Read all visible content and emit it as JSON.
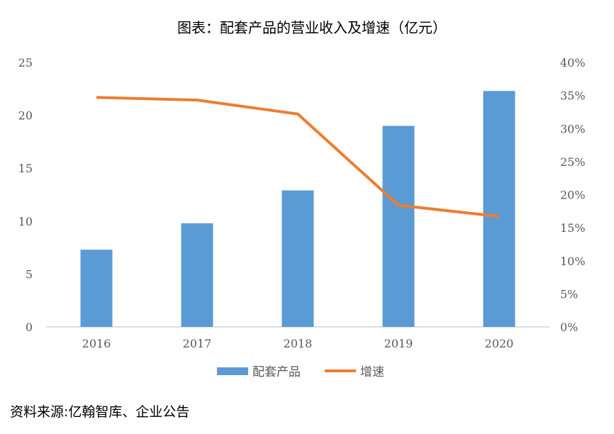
{
  "chart_data": {
    "type": "bar",
    "title": "图表：配套产品的营业收入及增速（亿元）",
    "categories": [
      "2016",
      "2017",
      "2018",
      "2019",
      "2020"
    ],
    "series": [
      {
        "name": "配套产品",
        "type": "bar",
        "axis": "left",
        "color": "#5B9BD5",
        "values": [
          7.3,
          9.8,
          12.9,
          19.0,
          22.3
        ]
      },
      {
        "name": "增速",
        "type": "line",
        "axis": "right",
        "color": "#ED7D31",
        "values": [
          34.7,
          34.3,
          32.2,
          18.4,
          16.7
        ]
      }
    ],
    "left_axis": {
      "ylim": [
        0,
        25
      ],
      "ticks": [
        "0",
        "5",
        "10",
        "15",
        "20",
        "25"
      ]
    },
    "right_axis": {
      "ylim": [
        0,
        40
      ],
      "ticks": [
        "0%",
        "5%",
        "10%",
        "15%",
        "20%",
        "25%",
        "30%",
        "35%",
        "40%"
      ]
    },
    "grid": false,
    "legend": "bottom"
  },
  "source": "资料来源:亿翰智库、企业公告"
}
